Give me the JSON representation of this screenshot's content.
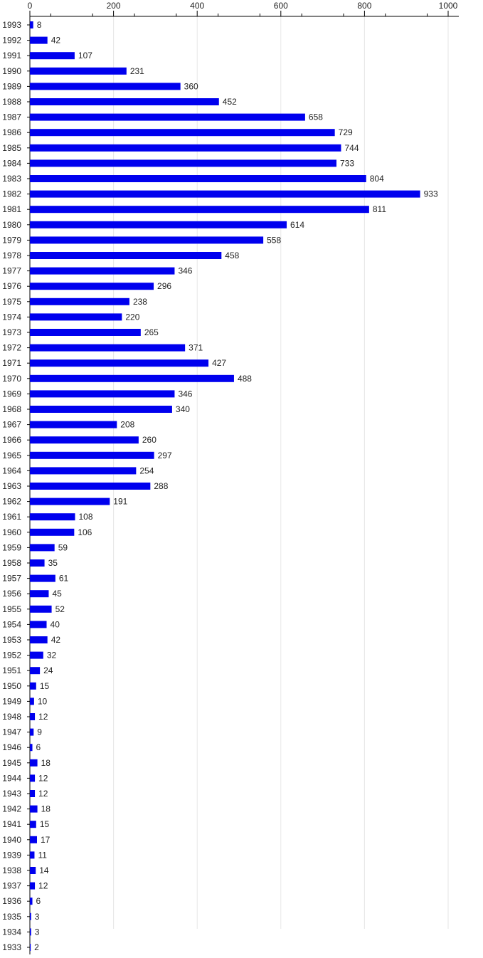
{
  "chart_data": {
    "type": "bar",
    "orientation": "horizontal",
    "title": "",
    "xlabel": "",
    "ylabel": "",
    "xlim": [
      0,
      1000
    ],
    "x_ticks": [
      0,
      200,
      400,
      600,
      800,
      1000
    ],
    "x_axis_position": "top",
    "grid": true,
    "data_labels": true,
    "bar_color": "#0000ee",
    "categories": [
      "1993",
      "1992",
      "1991",
      "1990",
      "1989",
      "1988",
      "1987",
      "1986",
      "1985",
      "1984",
      "1983",
      "1982",
      "1981",
      "1980",
      "1979",
      "1978",
      "1977",
      "1976",
      "1975",
      "1974",
      "1973",
      "1972",
      "1971",
      "1970",
      "1969",
      "1968",
      "1967",
      "1966",
      "1965",
      "1964",
      "1963",
      "1962",
      "1961",
      "1960",
      "1959",
      "1958",
      "1957",
      "1956",
      "1955",
      "1954",
      "1953",
      "1952",
      "1951",
      "1950",
      "1949",
      "1948",
      "1947",
      "1946",
      "1945",
      "1944",
      "1943",
      "1942",
      "1941",
      "1940",
      "1939",
      "1938",
      "1937",
      "1936",
      "1935",
      "1934",
      "1933"
    ],
    "values": [
      8,
      42,
      107,
      231,
      360,
      452,
      658,
      729,
      744,
      733,
      804,
      933,
      811,
      614,
      558,
      458,
      346,
      296,
      238,
      220,
      265,
      371,
      427,
      488,
      346,
      340,
      208,
      260,
      297,
      254,
      288,
      191,
      108,
      106,
      59,
      35,
      61,
      45,
      52,
      40,
      42,
      32,
      24,
      15,
      10,
      12,
      9,
      6,
      18,
      12,
      12,
      18,
      15,
      17,
      11,
      14,
      12,
      6,
      3,
      3,
      2
    ]
  }
}
